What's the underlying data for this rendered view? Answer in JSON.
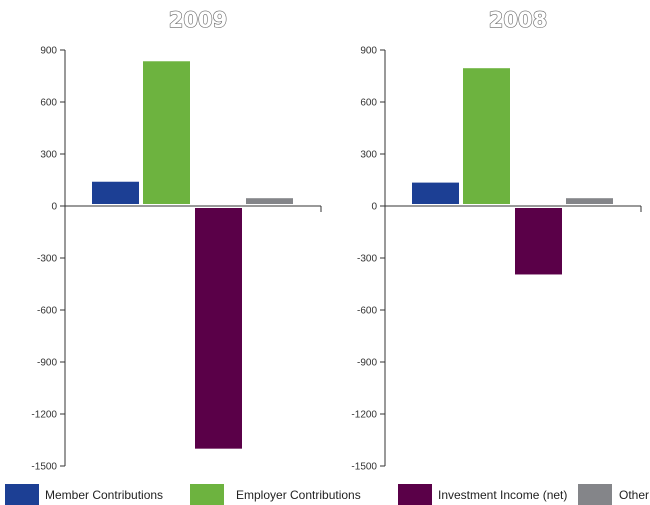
{
  "chart_data": [
    {
      "type": "bar",
      "title": "2009",
      "categories": [
        "Member Contributions",
        "Employer Contributions",
        "Investment Income (net)",
        "Other"
      ],
      "values": [
        140,
        835,
        -1400,
        45
      ],
      "ylim": [
        -1500,
        900
      ],
      "yticks": [
        "900",
        "600",
        "300",
        "0",
        "-300",
        "-600",
        "-900",
        "-1200",
        "-1500"
      ],
      "xlabel": "",
      "ylabel": "",
      "grid": false
    },
    {
      "type": "bar",
      "title": "2008",
      "categories": [
        "Member Contributions",
        "Employer Contributions",
        "Investment Income (net)",
        "Other"
      ],
      "values": [
        135,
        795,
        -395,
        45
      ],
      "ylim": [
        -1500,
        900
      ],
      "yticks": [
        "900",
        "600",
        "300",
        "0",
        "-300",
        "-600",
        "-900",
        "-1200",
        "-1500"
      ],
      "xlabel": "",
      "ylabel": "",
      "grid": false
    }
  ],
  "legend": {
    "placement": "bottom",
    "items": [
      {
        "label": "Member Contributions",
        "color": "#1c3f94"
      },
      {
        "label": "Employer Contributions",
        "color": "#6db33f"
      },
      {
        "label": "Investment Income (net)",
        "color": "#5a0048"
      },
      {
        "label": "Other",
        "color": "#848589"
      }
    ]
  }
}
